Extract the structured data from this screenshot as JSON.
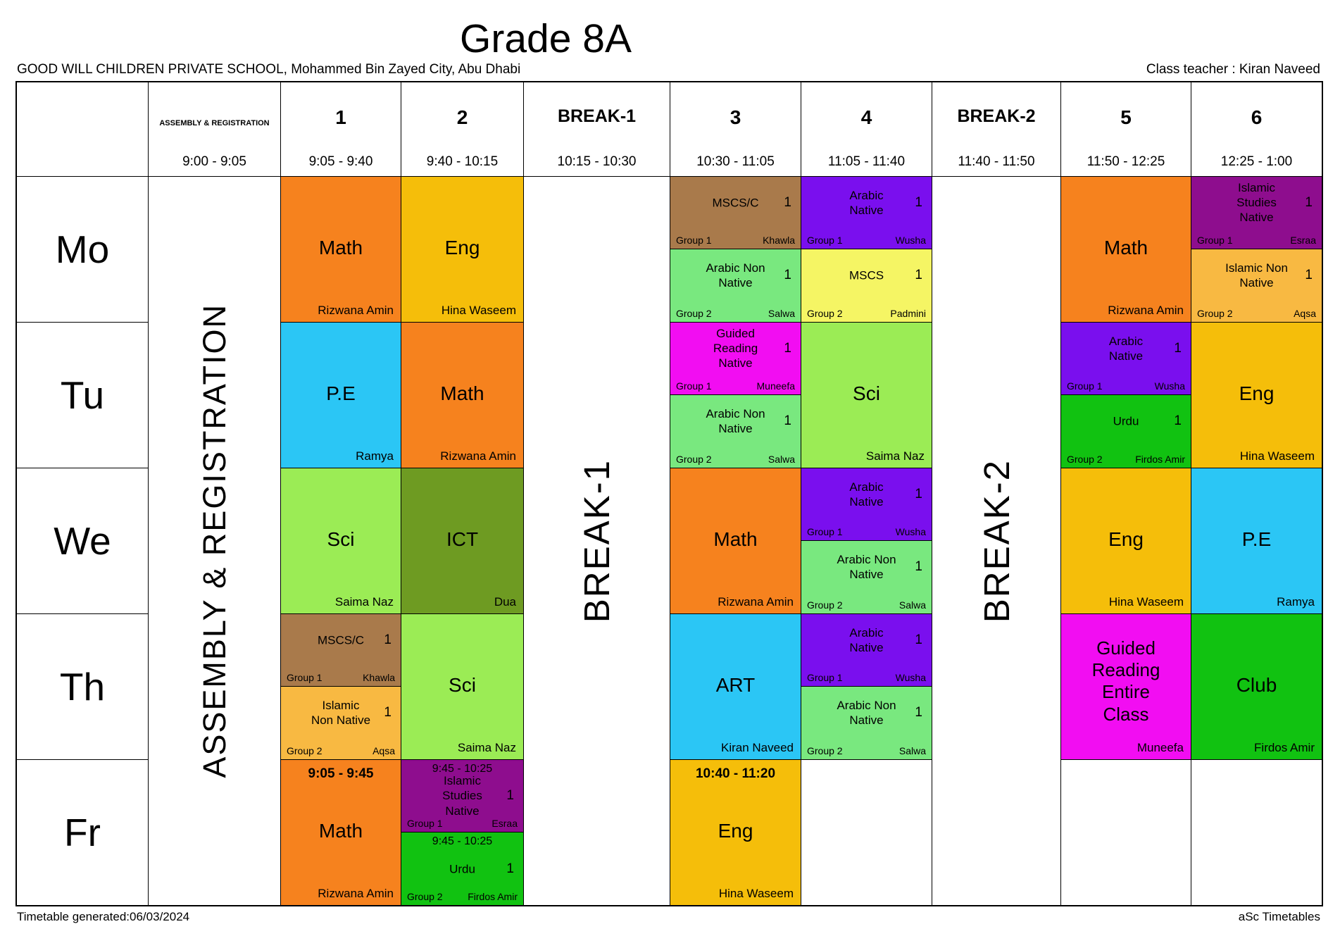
{
  "title": "Grade 8A",
  "school": "GOOD WILL CHILDREN PRIVATE SCHOOL, Mohammed Bin Zayed City, Abu Dhabi",
  "class_teacher": "Class teacher :  Kiran Naveed",
  "footer": {
    "generated": "Timetable generated:06/03/2024",
    "brand": "aSc Timetables"
  },
  "days": [
    "Mo",
    "Tu",
    "We",
    "Th",
    "Fr"
  ],
  "header": {
    "assembly_label": "ASSEMBLY & REGISTRATION",
    "assembly_time": "9:00 - 9:05",
    "p1_label": "1",
    "p1_time": "9:05 - 9:40",
    "p2_label": "2",
    "p2_time": "9:40 - 10:15",
    "b1_label": "BREAK-1",
    "b1_time": "10:15 - 10:30",
    "p3_label": "3",
    "p3_time": "10:30 - 11:05",
    "p4_label": "4",
    "p4_time": "11:05 - 11:40",
    "b2_label": "BREAK-2",
    "b2_time": "11:40 - 11:50",
    "p5_label": "5",
    "p5_time": "11:50 - 12:25",
    "p6_label": "6",
    "p6_time": "12:25 - 1:00"
  },
  "banners": {
    "assembly": "ASSEMBLY & REGISTRATION",
    "break1": "BREAK-1",
    "break2": "BREAK-2"
  },
  "colors": {
    "orange": "#F6821E",
    "gold": "#F5BE0A",
    "amber": "#F8B942",
    "cyan": "#2BC6F5",
    "sci_green": "#9BEC55",
    "light_green": "#79E87F",
    "olive": "#6E9B22",
    "brown": "#A97A4B",
    "violet": "#7A0FEE",
    "yellow": "#F5F564",
    "dark_magenta": "#8E0D8E",
    "magenta": "#F20DF2",
    "green": "#11C211"
  },
  "cells": {
    "mo": {
      "p1": {
        "subject": "Math",
        "teacher": "Rizwana Amin"
      },
      "p2": {
        "subject": "Eng",
        "teacher": "Hina Waseem"
      },
      "p3": {
        "split": [
          {
            "subject": "MSCS/C",
            "count": "1",
            "group": "Group 1",
            "teacher": "Khawla"
          },
          {
            "subject": "Arabic Non Native",
            "count": "1",
            "group": "Group 2",
            "teacher": "Salwa"
          }
        ]
      },
      "p4": {
        "split": [
          {
            "subject": "Arabic Native",
            "count": "1",
            "group": "Group 1",
            "teacher": "Wusha"
          },
          {
            "subject": "MSCS",
            "count": "1",
            "group": "Group 2",
            "teacher": "Padmini"
          }
        ]
      },
      "p5": {
        "subject": "Math",
        "teacher": "Rizwana Amin"
      },
      "p6": {
        "split": [
          {
            "subject": "Islamic Studies Native",
            "count": "1",
            "group": "Group 1",
            "teacher": "Esraa"
          },
          {
            "subject": "Islamic Non Native",
            "count": "1",
            "group": "Group 2",
            "teacher": "Aqsa"
          }
        ]
      }
    },
    "tu": {
      "p1": {
        "subject": "P.E",
        "teacher": "Ramya"
      },
      "p2": {
        "subject": "Math",
        "teacher": "Rizwana Amin"
      },
      "p3": {
        "split": [
          {
            "subject": "Guided Reading Native",
            "count": "1",
            "group": "Group 1",
            "teacher": "Muneefa"
          },
          {
            "subject": "Arabic Non Native",
            "count": "1",
            "group": "Group 2",
            "teacher": "Salwa"
          }
        ]
      },
      "p4": {
        "subject": "Sci",
        "teacher": "Saima Naz"
      },
      "p5": {
        "split": [
          {
            "subject": "Arabic Native",
            "count": "1",
            "group": "Group 1",
            "teacher": "Wusha"
          },
          {
            "subject": "Urdu",
            "count": "1",
            "group": "Group 2",
            "teacher": "Firdos Amir"
          }
        ]
      },
      "p6": {
        "subject": "Eng",
        "teacher": "Hina Waseem"
      }
    },
    "we": {
      "p1": {
        "subject": "Sci",
        "teacher": "Saima Naz"
      },
      "p2": {
        "subject": "ICT",
        "teacher": "Dua"
      },
      "p3": {
        "subject": "Math",
        "teacher": "Rizwana Amin"
      },
      "p4": {
        "split": [
          {
            "subject": "Arabic Native",
            "count": "1",
            "group": "Group 1",
            "teacher": "Wusha"
          },
          {
            "subject": "Arabic Non Native",
            "count": "1",
            "group": "Group 2",
            "teacher": "Salwa"
          }
        ]
      },
      "p5": {
        "subject": "Eng",
        "teacher": "Hina Waseem"
      },
      "p6": {
        "subject": "P.E",
        "teacher": "Ramya"
      }
    },
    "th": {
      "p1": {
        "split": [
          {
            "subject": "MSCS/C",
            "count": "1",
            "group": "Group 1",
            "teacher": "Khawla"
          },
          {
            "subject": "Islamic Non Native",
            "count": "1",
            "group": "Group 2",
            "teacher": "Aqsa"
          }
        ]
      },
      "p2": {
        "subject": "Sci",
        "teacher": "Saima Naz"
      },
      "p3": {
        "subject": "ART",
        "teacher": "Kiran Naveed"
      },
      "p4": {
        "split": [
          {
            "subject": "Arabic Native",
            "count": "1",
            "group": "Group 1",
            "teacher": "Wusha"
          },
          {
            "subject": "Arabic Non Native",
            "count": "1",
            "group": "Group 2",
            "teacher": "Salwa"
          }
        ]
      },
      "p5": {
        "subject": "Guided Reading Entire Class",
        "teacher": "Muneefa"
      },
      "p6": {
        "subject": "Club",
        "teacher": "Firdos Amir"
      }
    },
    "fr": {
      "p1": {
        "time": "9:05 - 9:45",
        "subject": "Math",
        "teacher": "Rizwana Amin"
      },
      "p2": {
        "split": [
          {
            "time": "9:45 - 10:25",
            "subject": "Islamic Studies Native",
            "count": "1",
            "group": "Group 1",
            "teacher": "Esraa"
          },
          {
            "time": "9:45 - 10:25",
            "subject": "Urdu",
            "count": "1",
            "group": "Group 2",
            "teacher": "Firdos Amir"
          }
        ]
      },
      "p3": {
        "time": "10:40 - 11:20",
        "subject": "Eng",
        "teacher": "Hina Waseem"
      }
    }
  }
}
